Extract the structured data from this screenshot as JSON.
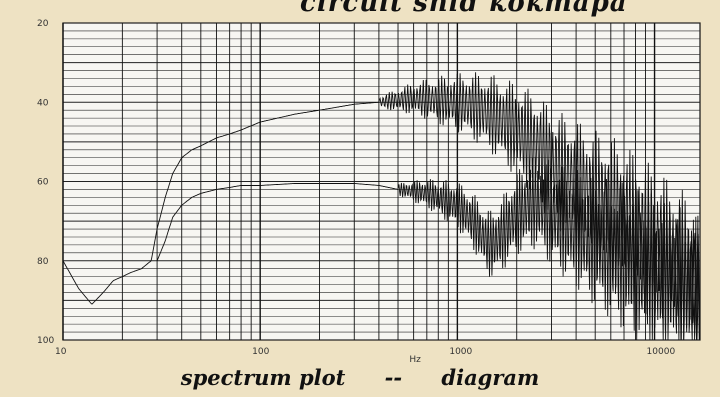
{
  "captions": {
    "top": "circuit    snid    коктара",
    "bottom_left": "spectrum plot",
    "separator": "--",
    "bottom_right": "diagram"
  },
  "chart_data": {
    "type": "line",
    "x_scale": "log",
    "xlim": [
      10,
      17000
    ],
    "ylim": [
      20,
      100
    ],
    "y_inverted": true,
    "grid": true,
    "xlabel": "Hz",
    "ylabel": "",
    "title": "",
    "x_ticks": [
      10,
      100,
      1000,
      10000
    ],
    "x_tick_labels": [
      "10",
      "100",
      "1000",
      "10000"
    ],
    "y_ticks": [
      20,
      40,
      60,
      80,
      100
    ],
    "y_tick_labels": [
      "20",
      "40",
      "60",
      "80",
      "100"
    ],
    "series": [
      {
        "x": [
          10,
          12,
          14,
          16,
          18,
          20,
          22,
          25,
          28,
          30,
          33,
          36,
          40,
          45,
          50,
          60,
          70,
          80,
          100,
          150,
          200,
          300,
          400,
          500,
          600,
          700,
          800,
          1000,
          1200,
          1500,
          2000,
          2500,
          3000,
          4000,
          5000,
          7000,
          10000,
          15000,
          17000
        ],
        "values": [
          80,
          87,
          91,
          88,
          85,
          84,
          83,
          82,
          80,
          72,
          64,
          58,
          54,
          52,
          51,
          49,
          48,
          47,
          45,
          43,
          42,
          40.5,
          40,
          39.5,
          39,
          39.2,
          39.5,
          40,
          41,
          43,
          47,
          51,
          56,
          61,
          65,
          70,
          76,
          83,
          88
        ],
        "jitter_from": 400
      },
      {
        "x": [
          30,
          33,
          36,
          40,
          45,
          50,
          60,
          70,
          80,
          100,
          150,
          200,
          300,
          400,
          500,
          600,
          700,
          800,
          1000,
          1200,
          1400,
          1500,
          1700,
          2000,
          2500,
          3000,
          4000,
          5000,
          7000,
          10000,
          15000,
          17000
        ],
        "values": [
          80,
          75,
          69,
          66,
          64,
          63,
          62,
          61.5,
          61,
          61,
          60.5,
          60.5,
          60.5,
          61,
          62,
          62.5,
          63,
          64,
          66,
          70,
          75,
          76,
          73,
          68,
          65,
          68,
          72,
          75,
          79,
          83,
          87,
          89
        ],
        "jitter_from": 500
      }
    ]
  }
}
